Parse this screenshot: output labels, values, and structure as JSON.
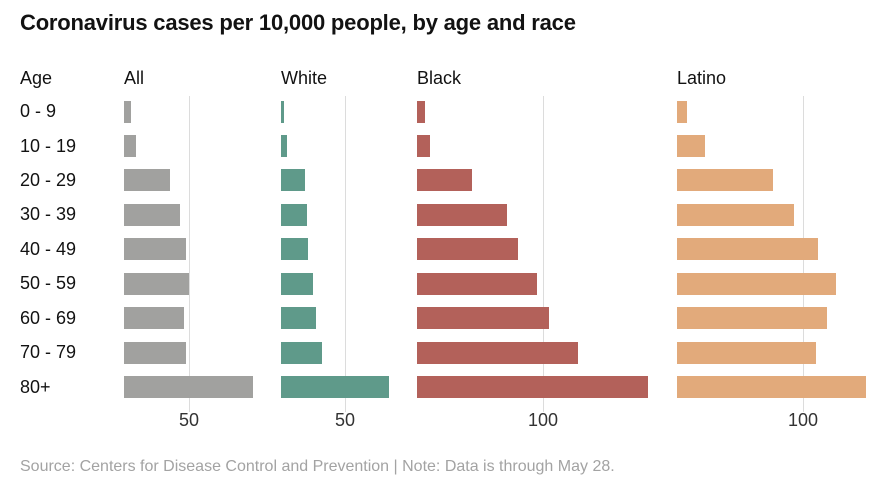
{
  "title": "Coronavirus cases per 10,000 people, by age and race",
  "age_column_header": "Age",
  "source_note": "Source: Centers for Disease Control and Prevention | Note: Data is through May 28.",
  "colors": {
    "all_bar": "#a1a19f",
    "white_bar": "#5f9a8a",
    "black_bar": "#b3615a",
    "latino_bar": "#e2aa7b",
    "gridline": "#dcdcdc",
    "tick_label": "#333333",
    "source_text": "#a3a3a3",
    "title_text": "#121212"
  },
  "chart_data": {
    "type": "bar",
    "orientation": "horizontal",
    "title": "Coronavirus cases per 10,000 people, by age and race",
    "xlabel": "cases per 10,000 people",
    "ylabel": "Age",
    "grid": true,
    "legend_position": "column-headers",
    "categories": [
      "0 - 9",
      "10 - 19",
      "20 - 29",
      "30 - 39",
      "40 - 49",
      "50 - 59",
      "60 - 69",
      "70 - 79",
      "80+"
    ],
    "series": [
      {
        "name": "All",
        "color": "#a1a19f",
        "gridline_value": 50,
        "axis_tick_label": "50",
        "values": [
          5,
          9,
          35,
          43,
          48,
          50,
          46,
          48,
          99
        ]
      },
      {
        "name": "White",
        "color": "#5f9a8a",
        "gridline_value": 50,
        "axis_tick_label": "50",
        "values": [
          2,
          5,
          19,
          20,
          21,
          25,
          27,
          32,
          84
        ]
      },
      {
        "name": "Black",
        "color": "#b3615a",
        "gridline_value": 100,
        "axis_tick_label": "100",
        "values": [
          6,
          10,
          44,
          71,
          80,
          95,
          105,
          128,
          183
        ]
      },
      {
        "name": "Latino",
        "color": "#e2aa7b",
        "gridline_value": 100,
        "axis_tick_label": "100",
        "values": [
          8,
          22,
          76,
          93,
          112,
          126,
          119,
          110,
          150
        ]
      }
    ]
  }
}
